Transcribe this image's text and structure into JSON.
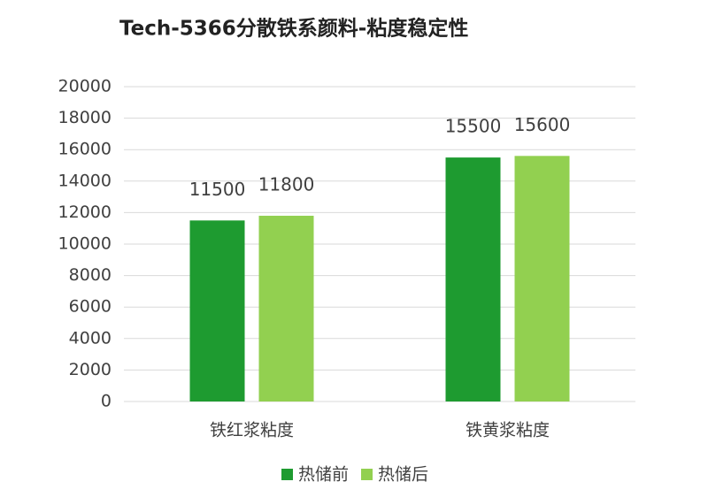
{
  "chart_data": {
    "type": "bar",
    "title": "Tech-5366分散铁系颜料-粘度稳定性",
    "categories": [
      "铁红浆粘度",
      "铁黄浆粘度"
    ],
    "series": [
      {
        "name": "热储前",
        "color": "#1e9b30",
        "values": [
          11500,
          15500
        ]
      },
      {
        "name": "热储后",
        "color": "#92d050",
        "values": [
          11800,
          15600
        ]
      }
    ],
    "ylim": [
      0,
      20000
    ],
    "yticks": [
      0,
      2000,
      4000,
      6000,
      8000,
      10000,
      12000,
      14000,
      16000,
      18000,
      20000
    ],
    "grid": true,
    "legend": "bottom"
  }
}
